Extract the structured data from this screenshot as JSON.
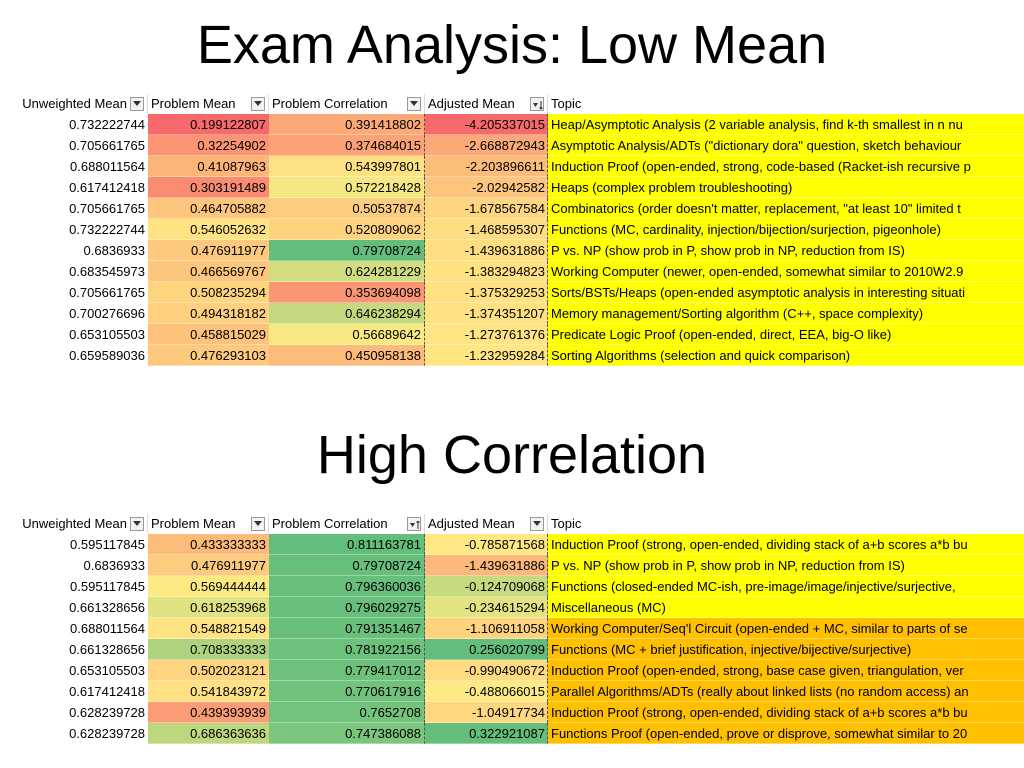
{
  "titles": {
    "low_mean": "Exam Analysis: Low Mean",
    "high_correlation": "High Correlation"
  },
  "headers": {
    "unweighted_mean": "Unweighted Mean",
    "problem_mean": "Problem Mean",
    "problem_correlation": "Problem Correlation",
    "adjusted_mean": "Adjusted Mean",
    "topic": "Topic"
  },
  "colors": {
    "topic_yellow": "#ffff00",
    "topic_orange": "#ffc000",
    "scale_red": "#f8696b",
    "scale_yellow": "#ffeb84",
    "scale_green": "#63be7b"
  },
  "low_mean_table": [
    {
      "uw": "0.732222744",
      "pm": "0.199122807",
      "pc": "0.391418802",
      "am": "-4.205337015",
      "topic": "Heap/Asymptotic Analysis (2 variable analysis, find k-th smallest in n nu",
      "pm_color": "#f8696b",
      "pc_color": "#fbaa77",
      "am_color": "#f8696b",
      "topic_color": "#ffff00"
    },
    {
      "uw": "0.705661765",
      "pm": "0.32254902",
      "pc": "0.374684015",
      "am": "-2.668872943",
      "topic": "Asymptotic Analysis/ADTs (\"dictionary dora\" question, sketch behaviour",
      "pm_color": "#fa9473",
      "pc_color": "#fba276",
      "am_color": "#fbaa77",
      "topic_color": "#ffff00"
    },
    {
      "uw": "0.688011564",
      "pm": "0.41087963",
      "pc": "0.543997801",
      "am": "-2.203896611",
      "topic": "Induction Proof (open-ended, strong, code-based (Racket-ish recursive p",
      "pm_color": "#fcb479",
      "pc_color": "#fee182",
      "am_color": "#fcbd7b",
      "topic_color": "#ffff00"
    },
    {
      "uw": "0.617412418",
      "pm": "0.303191489",
      "pc": "0.572218428",
      "am": "-2.02942582",
      "topic": "Heaps (complex problem troubleshooting)",
      "pm_color": "#f98b71",
      "pc_color": "#f5e883",
      "am_color": "#fdc47d",
      "topic_color": "#ffff00"
    },
    {
      "uw": "0.705661765",
      "pm": "0.464705882",
      "pc": "0.50537874",
      "am": "-1.678567584",
      "topic": "Combinatorics (order doesn't matter, replacement, \"at least 10\" limited t",
      "pm_color": "#fdc57d",
      "pc_color": "#fdcd7f",
      "am_color": "#fed580",
      "topic_color": "#ffff00"
    },
    {
      "uw": "0.732222744",
      "pm": "0.546052632",
      "pc": "0.520809062",
      "am": "-1.468595307",
      "topic": "Functions (MC, cardinality, injection/bijection/surjection, pigeonhole)",
      "pm_color": "#ffe383",
      "pc_color": "#fed380",
      "am_color": "#fedd82",
      "topic_color": "#ffff00"
    },
    {
      "uw": "0.6836933",
      "pm": "0.476911977",
      "pc": "0.79708724",
      "am": "-1.439631886",
      "topic": "P vs. NP (show prob in P, show prob in NP, reduction from IS)",
      "pm_color": "#fdc97e",
      "pc_color": "#63be7b",
      "am_color": "#ffde82",
      "topic_color": "#ffff00"
    },
    {
      "uw": "0.683545973",
      "pm": "0.466569767",
      "pc": "0.624281229",
      "am": "-1.383294823",
      "topic": "Working Computer (newer, open-ended, somewhat similar to 2010W2.9",
      "pm_color": "#fdc67d",
      "pc_color": "#d2dd80",
      "am_color": "#ffe182",
      "topic_color": "#ffff00"
    },
    {
      "uw": "0.705661765",
      "pm": "0.508235294",
      "pc": "0.353694098",
      "am": "-1.375329253",
      "topic": "Sorts/BSTs/Heaps (open-ended asymptotic analysis in interesting situati",
      "pm_color": "#fed57f",
      "pc_color": "#fa9674",
      "am_color": "#ffe182",
      "topic_color": "#ffff00"
    },
    {
      "uw": "0.700276696",
      "pm": "0.494318182",
      "pc": "0.646238294",
      "am": "-1.374351207",
      "topic": "Memory management/Sorting algorithm (C++, space complexity)",
      "pm_color": "#fed07f",
      "pc_color": "#c4d97f",
      "am_color": "#ffe182",
      "topic_color": "#ffff00"
    },
    {
      "uw": "0.653105503",
      "pm": "0.458815029",
      "pc": "0.56689642",
      "am": "-1.273761376",
      "topic": "Predicate Logic Proof (open-ended, direct, EEA, big-O like)",
      "pm_color": "#fdc37d",
      "pc_color": "#f8e983",
      "am_color": "#ffe483",
      "topic_color": "#ffff00"
    },
    {
      "uw": "0.659589036",
      "pm": "0.476293103",
      "pc": "0.450958138",
      "am": "-1.232959284",
      "topic": "Sorting Algorithms (selection and quick comparison)",
      "pm_color": "#fdc97e",
      "pc_color": "#fcbb7a",
      "am_color": "#ffe683",
      "topic_color": "#ffff00"
    }
  ],
  "high_corr_table": [
    {
      "uw": "0.595117845",
      "pm": "0.433333333",
      "pc": "0.811163781",
      "am": "-0.785871568",
      "topic": "Induction Proof (strong, open-ended, dividing stack of a+b scores a*b bu",
      "pm_color": "#fdbb7a",
      "pc_color": "#63be7b",
      "am_color": "#ffe884",
      "topic_color": "#ffff00"
    },
    {
      "uw": "0.6836933",
      "pm": "0.476911977",
      "pc": "0.79708724",
      "am": "-1.439631886",
      "topic": "P vs. NP (show prob in P, show prob in NP, reduction from IS)",
      "pm_color": "#fdcb7e",
      "pc_color": "#67bf7b",
      "am_color": "#fcb77a",
      "topic_color": "#ffff00"
    },
    {
      "uw": "0.595117845",
      "pm": "0.569444444",
      "pc": "0.796360036",
      "am": "-0.124709068",
      "topic": "Functions (closed-ended MC-ish, pre-image/image/injective/surjective,",
      "pm_color": "#fbea84",
      "pc_color": "#67bf7b",
      "am_color": "#c8da80",
      "topic_color": "#ffff00"
    },
    {
      "uw": "0.661328656",
      "pm": "0.618253968",
      "pc": "0.796029275",
      "am": "-0.234615294",
      "topic": "Miscellaneous (MC)",
      "pm_color": "#e0e282",
      "pc_color": "#67bf7b",
      "am_color": "#e4e382",
      "topic_color": "#ffff00"
    },
    {
      "uw": "0.688011564",
      "pm": "0.548821549",
      "pc": "0.791351467",
      "am": "-1.106911058",
      "topic": "Working Computer/Seq'l Circuit (open-ended + MC, similar to parts of se",
      "pm_color": "#ffe383",
      "pc_color": "#69c07b",
      "am_color": "#fed380",
      "topic_color": "#ffc000"
    },
    {
      "uw": "0.661328656",
      "pm": "0.708333333",
      "pc": "0.781922156",
      "am": "0.256020799",
      "topic": "Functions (MC + brief justification, injective/bijective/surjective)",
      "pm_color": "#aed27e",
      "pc_color": "#6cc17c",
      "am_color": "#63be7b",
      "topic_color": "#ffc000"
    },
    {
      "uw": "0.653105503",
      "pm": "0.502023121",
      "pc": "0.779417012",
      "am": "-0.990490672",
      "topic": "Induction Proof (open-ended, strong, base case given, triangulation, ver",
      "pm_color": "#fed480",
      "pc_color": "#6dc17c",
      "am_color": "#fedb81",
      "topic_color": "#ffc000"
    },
    {
      "uw": "0.617412418",
      "pm": "0.541843972",
      "pc": "0.770617916",
      "am": "-0.488066015",
      "topic": "Parallel Algorithms/ADTs (really about linked lists (no random access) an",
      "pm_color": "#ffe183",
      "pc_color": "#71c27c",
      "am_color": "#fdea84",
      "topic_color": "#ffc000"
    },
    {
      "uw": "0.628239728",
      "pm": "0.439393939",
      "pc": "0.7652708",
      "am": "-1.04917734",
      "topic": "Induction Proof (strong, open-ended, dividing stack of a+b scores a*b bu",
      "pm_color": "#fa9c75",
      "pc_color": "#74c37c",
      "am_color": "#fed780",
      "topic_color": "#ffc000"
    },
    {
      "uw": "0.628239728",
      "pm": "0.686363636",
      "pc": "0.747386088",
      "am": "0.322921087",
      "topic": "Functions Proof (open-ended, prove or disprove, somewhat similar to 20",
      "pm_color": "#bdd77f",
      "pc_color": "#7cc57c",
      "am_color": "#63be7b",
      "topic_color": "#ffc000"
    }
  ]
}
